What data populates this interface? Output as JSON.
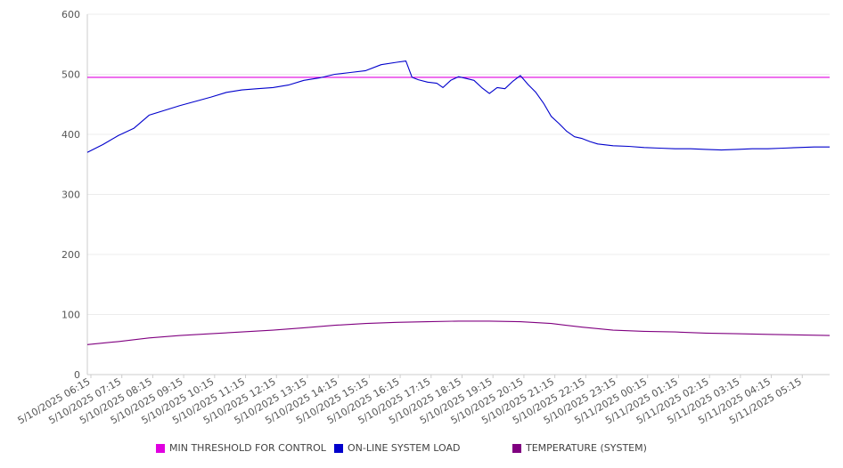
{
  "chart_data": {
    "type": "line",
    "ylim": [
      0,
      600
    ],
    "y_ticks": [
      0,
      100,
      200,
      300,
      400,
      500,
      600
    ],
    "x_tick_labels": [
      "5/10/2025 06:15",
      "5/10/2025 07:15",
      "5/10/2025 08:15",
      "5/10/2025 09:15",
      "5/10/2025 10:15",
      "5/10/2025 11:15",
      "5/10/2025 12:15",
      "5/10/2025 13:15",
      "5/10/2025 14:15",
      "5/10/2025 15:15",
      "5/10/2025 16:15",
      "5/10/2025 17:15",
      "5/10/2025 18:15",
      "5/10/2025 19:15",
      "5/10/2025 20:15",
      "5/10/2025 21:15",
      "5/10/2025 22:15",
      "5/10/2025 23:15",
      "5/11/2025 00:15",
      "5/11/2025 01:15",
      "5/11/2025 02:15",
      "5/11/2025 03:15",
      "5/11/2025 04:15",
      "5/11/2025 05:15"
    ],
    "x_range_hours": [
      0,
      24
    ],
    "grid": true,
    "legend_position": "bottom",
    "series": [
      {
        "name": "MIN THRESHOLD FOR CONTROL",
        "color": "#e000e0",
        "x": [
          0,
          24
        ],
        "y": [
          495,
          495
        ]
      },
      {
        "name": "ON-LINE SYSTEM LOAD",
        "color": "#0000cc",
        "x": [
          0,
          0.5,
          1,
          1.5,
          2,
          2.5,
          3,
          3.5,
          4,
          4.5,
          5,
          5.5,
          6,
          6.5,
          7,
          7.5,
          8,
          8.5,
          9,
          9.5,
          10,
          10.3,
          10.5,
          10.7,
          11,
          11.3,
          11.5,
          11.75,
          12,
          12.25,
          12.5,
          12.75,
          13,
          13.25,
          13.5,
          13.75,
          14,
          14.25,
          14.5,
          14.75,
          15,
          15.25,
          15.5,
          15.75,
          16,
          16.25,
          16.5,
          17,
          17.5,
          18,
          18.5,
          19,
          19.5,
          20,
          20.5,
          21,
          21.5,
          22,
          22.5,
          23,
          23.5,
          24
        ],
        "y": [
          370,
          383,
          398,
          410,
          432,
          440,
          448,
          455,
          462,
          470,
          474,
          476,
          478,
          482,
          490,
          494,
          500,
          503,
          506,
          516,
          520,
          522,
          495,
          491,
          487,
          485,
          478,
          490,
          496,
          493,
          490,
          478,
          468,
          478,
          476,
          488,
          498,
          483,
          470,
          452,
          430,
          418,
          405,
          396,
          393,
          388,
          384,
          381,
          380,
          378,
          377,
          376,
          376,
          375,
          374,
          375,
          376,
          376,
          377,
          378,
          379,
          379
        ]
      },
      {
        "name": "TEMPERATURE (SYSTEM)",
        "color": "#800080",
        "x": [
          0,
          1,
          2,
          3,
          4,
          5,
          6,
          7,
          8,
          9,
          10,
          11,
          12,
          13,
          14,
          15,
          16,
          17,
          18,
          19,
          20,
          21,
          22,
          23,
          24
        ],
        "y": [
          50,
          55,
          61,
          65,
          68,
          71,
          74,
          78,
          82,
          85,
          87,
          88,
          89,
          89,
          88,
          85,
          79,
          74,
          72,
          71,
          69,
          68,
          67,
          66,
          65
        ]
      }
    ]
  }
}
